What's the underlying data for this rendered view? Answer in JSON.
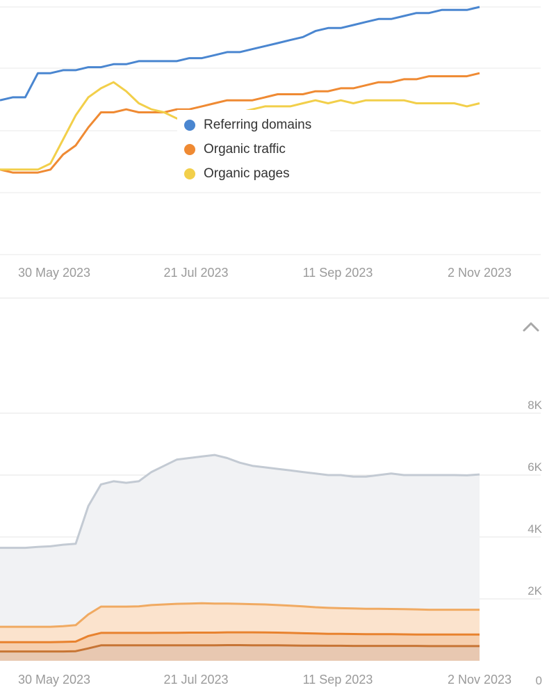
{
  "chart_data": [
    {
      "type": "line",
      "title": "",
      "x_ticks": [
        "30 May 2023",
        "21 Jul 2023",
        "11 Sep 2023",
        "2 Nov 2023"
      ],
      "x": [
        0,
        5,
        10,
        15,
        20,
        25,
        30,
        35,
        40,
        45,
        50,
        55,
        60,
        65,
        70,
        75,
        80,
        85,
        90,
        95,
        100,
        105,
        110,
        115,
        120,
        125,
        130,
        135,
        140,
        145,
        150,
        155,
        160,
        165,
        170,
        175,
        180,
        185,
        190
      ],
      "grid": true,
      "legend_placement": "center",
      "series": [
        {
          "name": "Referring domains",
          "color": "#4a86d0",
          "values": [
            81,
            82,
            82,
            90,
            90,
            91,
            91,
            92,
            92,
            93,
            93,
            94,
            94,
            94,
            94,
            95,
            95,
            96,
            97,
            97,
            98,
            99,
            100,
            101,
            102,
            104,
            105,
            105,
            106,
            107,
            108,
            108,
            109,
            110,
            110,
            111,
            111,
            111,
            112
          ]
        },
        {
          "name": "Organic traffic",
          "color": "#ef8a33",
          "values": [
            58,
            57,
            57,
            57,
            58,
            63,
            66,
            72,
            77,
            77,
            78,
            77,
            77,
            77,
            78,
            78,
            79,
            80,
            81,
            81,
            81,
            82,
            83,
            83,
            83,
            84,
            84,
            85,
            85,
            86,
            87,
            87,
            88,
            88,
            89,
            89,
            89,
            89,
            90
          ]
        },
        {
          "name": "Organic pages",
          "color": "#f2cf4a",
          "values": [
            58,
            58,
            58,
            58,
            60,
            68,
            76,
            82,
            85,
            87,
            84,
            80,
            78,
            77,
            75,
            75,
            75,
            75,
            75,
            77,
            78,
            79,
            79,
            79,
            80,
            81,
            80,
            81,
            80,
            81,
            81,
            81,
            81,
            80,
            80,
            80,
            80,
            79,
            80
          ]
        }
      ]
    },
    {
      "type": "area",
      "x_ticks": [
        "30 May 2023",
        "21 Jul 2023",
        "11 Sep 2023",
        "2 Nov 2023"
      ],
      "y_ticks": [
        "8K",
        "6K",
        "4K",
        "2K",
        "0"
      ],
      "ylim": [
        0,
        8000
      ],
      "x": [
        0,
        5,
        10,
        15,
        20,
        25,
        30,
        35,
        40,
        45,
        50,
        55,
        60,
        65,
        70,
        75,
        80,
        85,
        90,
        95,
        100,
        105,
        110,
        115,
        120,
        125,
        130,
        135,
        140,
        145,
        150,
        155,
        160,
        165,
        170,
        175,
        180,
        185,
        190
      ],
      "grid": true,
      "series": [
        {
          "color": "#c3cad3",
          "values": [
            3650,
            3650,
            3650,
            3680,
            3700,
            3750,
            3780,
            5000,
            5700,
            5800,
            5750,
            5800,
            6100,
            6300,
            6500,
            6550,
            6600,
            6650,
            6550,
            6400,
            6300,
            6250,
            6200,
            6150,
            6100,
            6050,
            6000,
            6000,
            5950,
            5950,
            6000,
            6050,
            6000,
            6000,
            6000,
            6000,
            6000,
            5990,
            6020
          ]
        },
        {
          "color": "#f0aa62",
          "values": [
            1100,
            1100,
            1100,
            1100,
            1100,
            1120,
            1150,
            1500,
            1750,
            1750,
            1750,
            1760,
            1800,
            1820,
            1840,
            1850,
            1860,
            1850,
            1850,
            1840,
            1830,
            1820,
            1800,
            1780,
            1760,
            1730,
            1710,
            1700,
            1690,
            1680,
            1680,
            1675,
            1670,
            1660,
            1650,
            1650,
            1650,
            1650,
            1650
          ]
        },
        {
          "color": "#e8822e",
          "values": [
            600,
            600,
            600,
            600,
            600,
            610,
            620,
            800,
            900,
            900,
            900,
            900,
            900,
            905,
            905,
            910,
            910,
            910,
            920,
            920,
            920,
            915,
            910,
            900,
            890,
            880,
            870,
            870,
            865,
            860,
            860,
            860,
            855,
            850,
            850,
            850,
            850,
            850,
            850
          ]
        },
        {
          "color": "#c77535",
          "values": [
            300,
            300,
            300,
            300,
            300,
            300,
            310,
            400,
            500,
            500,
            500,
            500,
            500,
            500,
            500,
            500,
            500,
            500,
            505,
            505,
            500,
            500,
            500,
            495,
            490,
            490,
            485,
            485,
            480,
            480,
            480,
            480,
            480,
            480,
            475,
            475,
            475,
            475,
            475
          ]
        }
      ]
    }
  ]
}
